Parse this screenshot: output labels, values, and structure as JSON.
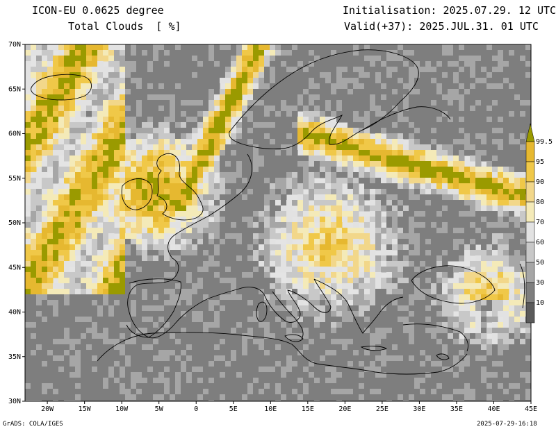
{
  "header": {
    "model": "ICON-EU 0.0625 degree",
    "variable": "Total Clouds  [ %]",
    "init": "Initialisation: 2025.07.29. 12 UTC",
    "valid": "Valid(+37): 2025.JUL.31. 01 UTC"
  },
  "axes": {
    "lat_labels": [
      "70N",
      "65N",
      "60N",
      "55N",
      "50N",
      "45N",
      "40N",
      "35N",
      "30N"
    ],
    "lon_labels": [
      "20W",
      "15W",
      "10W",
      "5W",
      "0",
      "5E",
      "10E",
      "15E",
      "20E",
      "25E",
      "30E",
      "35E",
      "40E",
      "45E"
    ],
    "lat_range": [
      30,
      70
    ],
    "lon_range": [
      -23,
      45
    ]
  },
  "legend": {
    "labels": [
      "99.5",
      "95",
      "90",
      "80",
      "70",
      "60",
      "50",
      "30",
      "10"
    ],
    "colors": [
      "#e6b830",
      "#f0c848",
      "#f2d78a",
      "#f4eab8",
      "#e2e2e2",
      "#c8c8c8",
      "#a6a6a6",
      "#7e7e7e",
      "#5a5a5a"
    ],
    "top_color": "#9a9a00"
  },
  "footer": {
    "left": "GrADS: COLA/IGES",
    "right": "2025-07-29-16:18"
  }
}
